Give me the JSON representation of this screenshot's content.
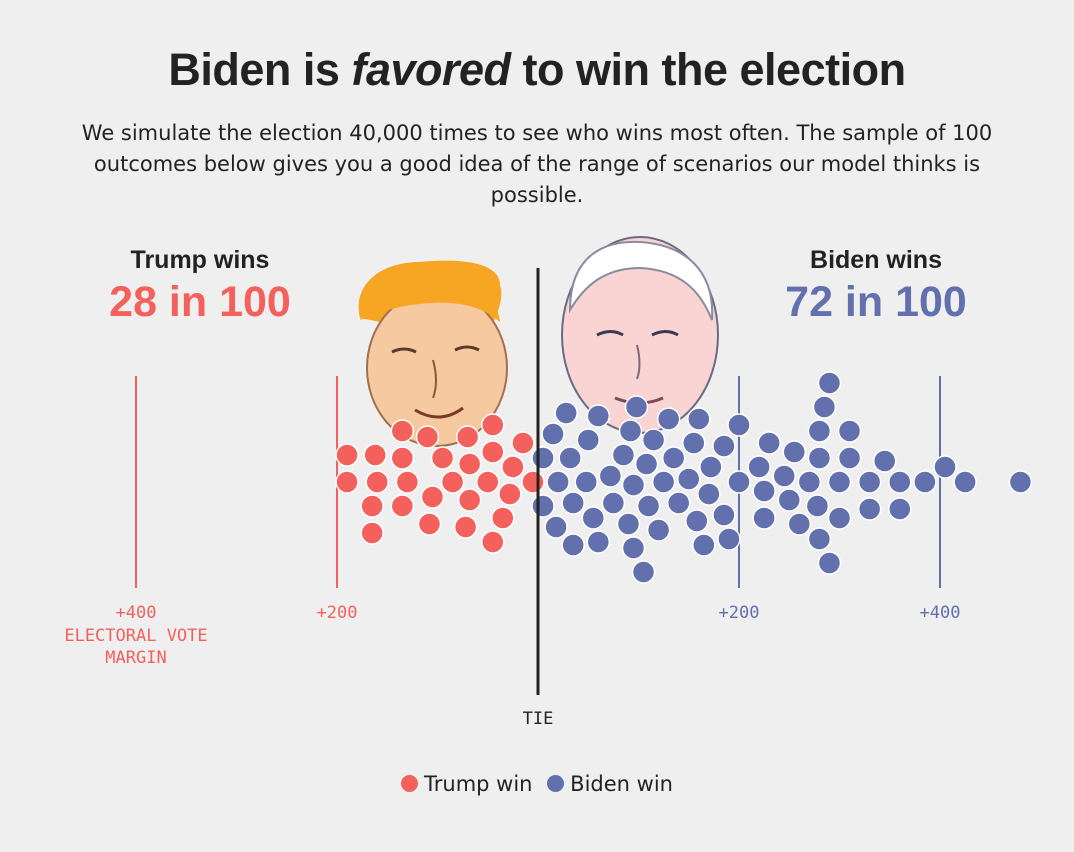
{
  "title": {
    "before": "Biden is ",
    "emphasis": "favored",
    "after": " to win the election"
  },
  "subtitle": "We simulate the election 40,000 times to see who wins most often. The sample of 100 outcomes below gives you a good idea of the range of scenarios our model thinks is possible.",
  "trump": {
    "heading": "Trump wins",
    "odds": "28 in 100",
    "color": "#f4615d",
    "portrait_icon": "trump-portrait-icon"
  },
  "biden": {
    "heading": "Biden wins",
    "odds": "72 in 100",
    "color": "#6270ad",
    "portrait_icon": "biden-portrait-icon"
  },
  "chart_data": {
    "type": "scatter",
    "subtype": "beeswarm-dot-plot",
    "title": "Biden is favored to win the election",
    "x_unit": "electoral vote margin (negative = Trump margin, positive = Biden margin)",
    "xlim": [
      -400,
      490
    ],
    "ticks": [
      {
        "value": -400,
        "label": "+400",
        "side": "trump"
      },
      {
        "value": -200,
        "label": "+200",
        "side": "trump"
      },
      {
        "value": 200,
        "label": "+200",
        "side": "biden"
      },
      {
        "value": 400,
        "label": "+400",
        "side": "biden"
      }
    ],
    "axis_title_lines": [
      "ELECTORAL VOTE",
      "MARGIN"
    ],
    "center_label": "TIE",
    "series": [
      {
        "name": "Trump win",
        "count": 28,
        "color": "#f4615d",
        "margins": [
          -190,
          -190,
          -165,
          -165,
          -162,
          -160,
          -135,
          -135,
          -135,
          -130,
          -110,
          -108,
          -105,
          -95,
          -85,
          -72,
          -70,
          -68,
          -68,
          -50,
          -45,
          -45,
          -45,
          -35,
          -28,
          -25,
          -15,
          -5
        ]
      },
      {
        "name": "Biden win",
        "count": 72,
        "color": "#6270ad",
        "margins": [
          5,
          5,
          15,
          18,
          20,
          28,
          32,
          35,
          35,
          48,
          50,
          55,
          60,
          60,
          72,
          75,
          85,
          90,
          92,
          95,
          95,
          98,
          105,
          108,
          110,
          115,
          120,
          125,
          130,
          135,
          140,
          150,
          155,
          158,
          160,
          165,
          170,
          172,
          185,
          185,
          190,
          200,
          200,
          220,
          225,
          225,
          230,
          245,
          250,
          255,
          260,
          270,
          278,
          280,
          280,
          280,
          285,
          290,
          290,
          300,
          300,
          310,
          310,
          330,
          330,
          345,
          360,
          360,
          385,
          405,
          425,
          480
        ]
      }
    ],
    "legend": [
      {
        "label": "Trump win",
        "color": "#f4615d"
      },
      {
        "label": "Biden win",
        "color": "#6270ad"
      }
    ]
  }
}
